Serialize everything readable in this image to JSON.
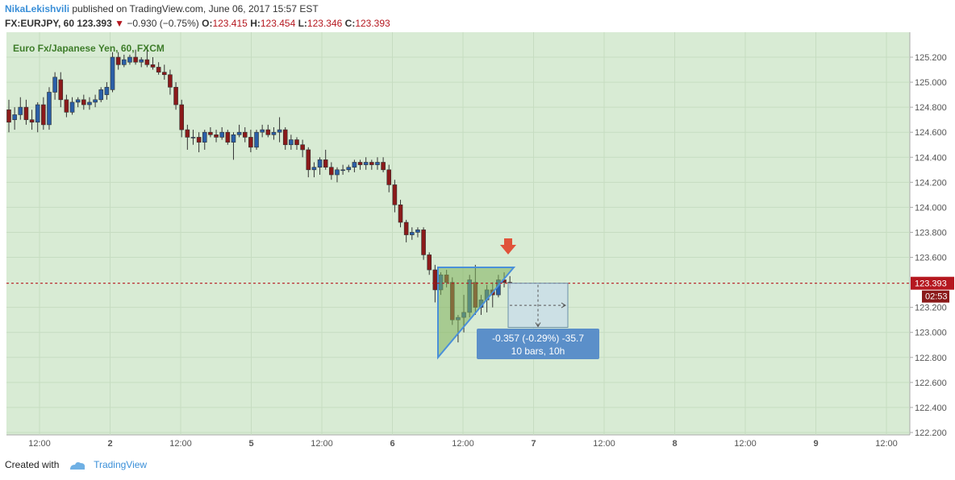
{
  "header": {
    "author": "NikaLekishvili",
    "published": " published on TradingView.com, June 06, 2017 15:57 EST",
    "symbol": "FX:EURJPY, 60",
    "last": "123.393",
    "change": "−0.930 (−0.75%)",
    "o_label": "O:",
    "o_value": "123.415",
    "h_label": "H:",
    "h_value": "123.454",
    "l_label": "L:",
    "l_value": "123.346",
    "c_label": "C:",
    "c_value": "123.393"
  },
  "footer": {
    "created_with": "Created with",
    "brand": "TradingView"
  },
  "colors": {
    "plot_bg": "#d8ebd4",
    "up": "#2a5fa8",
    "down": "#8b1a1a",
    "price_line": "#b5171f",
    "triangle": "#7fb15a",
    "triangle_edge": "#4a90d9",
    "measure_box": "#c9dde8",
    "measure_label_bg": "#5b8fc9",
    "arrow": "#e0533a"
  },
  "chart_data": {
    "type": "candlestick",
    "title": "Euro Fx/Japanese Yen, 60, FXCM",
    "ylim": [
      122.2,
      125.3
    ],
    "y_ticks": [
      125.2,
      125.0,
      124.8,
      124.6,
      124.4,
      124.2,
      124.0,
      123.8,
      123.6,
      123.2,
      123.0,
      122.8,
      122.6,
      122.4,
      122.2
    ],
    "y_tick_labels": [
      "125.200",
      "125.000",
      "124.800",
      "124.600",
      "124.400",
      "124.200",
      "124.000",
      "123.800",
      "123.600",
      "123.200",
      "123.000",
      "122.800",
      "122.600",
      "122.400",
      "122.200"
    ],
    "x_tick_labels": [
      "12:00",
      "2",
      "12:00",
      "5",
      "12:00",
      "6",
      "12:00",
      "7",
      "12:00",
      "8",
      "12:00",
      "9",
      "12:00"
    ],
    "bold_x_ticks": [
      1,
      3,
      5,
      7,
      9,
      11
    ],
    "current_price": 123.393,
    "current_price_label": "123.393",
    "countdown": "02:53",
    "candles": [
      {
        "o": 124.78,
        "h": 124.86,
        "l": 124.6,
        "c": 124.68
      },
      {
        "o": 124.7,
        "h": 124.8,
        "l": 124.62,
        "c": 124.74
      },
      {
        "o": 124.74,
        "h": 124.88,
        "l": 124.7,
        "c": 124.8
      },
      {
        "o": 124.8,
        "h": 124.86,
        "l": 124.66,
        "c": 124.7
      },
      {
        "o": 124.7,
        "h": 124.78,
        "l": 124.62,
        "c": 124.68
      },
      {
        "o": 124.68,
        "h": 124.84,
        "l": 124.6,
        "c": 124.82
      },
      {
        "o": 124.82,
        "h": 124.88,
        "l": 124.62,
        "c": 124.66
      },
      {
        "o": 124.66,
        "h": 124.96,
        "l": 124.62,
        "c": 124.92
      },
      {
        "o": 124.92,
        "h": 125.08,
        "l": 124.86,
        "c": 125.04
      },
      {
        "o": 125.02,
        "h": 125.08,
        "l": 124.8,
        "c": 124.86
      },
      {
        "o": 124.86,
        "h": 124.9,
        "l": 124.72,
        "c": 124.76
      },
      {
        "o": 124.76,
        "h": 124.88,
        "l": 124.74,
        "c": 124.84
      },
      {
        "o": 124.84,
        "h": 124.88,
        "l": 124.8,
        "c": 124.86
      },
      {
        "o": 124.86,
        "h": 124.9,
        "l": 124.78,
        "c": 124.82
      },
      {
        "o": 124.82,
        "h": 124.88,
        "l": 124.78,
        "c": 124.84
      },
      {
        "o": 124.84,
        "h": 124.9,
        "l": 124.8,
        "c": 124.86
      },
      {
        "o": 124.86,
        "h": 124.96,
        "l": 124.84,
        "c": 124.94
      },
      {
        "o": 124.9,
        "h": 125.0,
        "l": 124.86,
        "c": 124.96
      },
      {
        "o": 124.94,
        "h": 125.24,
        "l": 124.92,
        "c": 125.2
      },
      {
        "o": 125.2,
        "h": 125.24,
        "l": 125.1,
        "c": 125.14
      },
      {
        "o": 125.14,
        "h": 125.22,
        "l": 125.12,
        "c": 125.18
      },
      {
        "o": 125.16,
        "h": 125.22,
        "l": 125.14,
        "c": 125.2
      },
      {
        "o": 125.2,
        "h": 125.26,
        "l": 125.14,
        "c": 125.16
      },
      {
        "o": 125.16,
        "h": 125.2,
        "l": 125.12,
        "c": 125.18
      },
      {
        "o": 125.18,
        "h": 125.28,
        "l": 125.12,
        "c": 125.14
      },
      {
        "o": 125.14,
        "h": 125.2,
        "l": 125.1,
        "c": 125.12
      },
      {
        "o": 125.12,
        "h": 125.16,
        "l": 125.06,
        "c": 125.08
      },
      {
        "o": 125.08,
        "h": 125.14,
        "l": 125.02,
        "c": 125.06
      },
      {
        "o": 125.06,
        "h": 125.1,
        "l": 124.9,
        "c": 124.96
      },
      {
        "o": 124.96,
        "h": 125.0,
        "l": 124.78,
        "c": 124.82
      },
      {
        "o": 124.82,
        "h": 124.86,
        "l": 124.56,
        "c": 124.62
      },
      {
        "o": 124.62,
        "h": 124.66,
        "l": 124.46,
        "c": 124.56
      },
      {
        "o": 124.56,
        "h": 124.62,
        "l": 124.5,
        "c": 124.56
      },
      {
        "o": 124.56,
        "h": 124.6,
        "l": 124.44,
        "c": 124.52
      },
      {
        "o": 124.52,
        "h": 124.62,
        "l": 124.46,
        "c": 124.6
      },
      {
        "o": 124.6,
        "h": 124.64,
        "l": 124.56,
        "c": 124.58
      },
      {
        "o": 124.58,
        "h": 124.62,
        "l": 124.52,
        "c": 124.56
      },
      {
        "o": 124.56,
        "h": 124.64,
        "l": 124.54,
        "c": 124.6
      },
      {
        "o": 124.6,
        "h": 124.62,
        "l": 124.5,
        "c": 124.52
      },
      {
        "o": 124.52,
        "h": 124.6,
        "l": 124.38,
        "c": 124.58
      },
      {
        "o": 124.58,
        "h": 124.66,
        "l": 124.56,
        "c": 124.6
      },
      {
        "o": 124.6,
        "h": 124.64,
        "l": 124.52,
        "c": 124.56
      },
      {
        "o": 124.56,
        "h": 124.62,
        "l": 124.44,
        "c": 124.48
      },
      {
        "o": 124.48,
        "h": 124.62,
        "l": 124.46,
        "c": 124.6
      },
      {
        "o": 124.6,
        "h": 124.66,
        "l": 124.56,
        "c": 124.62
      },
      {
        "o": 124.62,
        "h": 124.66,
        "l": 124.56,
        "c": 124.58
      },
      {
        "o": 124.58,
        "h": 124.64,
        "l": 124.54,
        "c": 124.6
      },
      {
        "o": 124.6,
        "h": 124.72,
        "l": 124.52,
        "c": 124.62
      },
      {
        "o": 124.62,
        "h": 124.64,
        "l": 124.46,
        "c": 124.5
      },
      {
        "o": 124.5,
        "h": 124.58,
        "l": 124.46,
        "c": 124.54
      },
      {
        "o": 124.54,
        "h": 124.56,
        "l": 124.46,
        "c": 124.5
      },
      {
        "o": 124.5,
        "h": 124.54,
        "l": 124.4,
        "c": 124.46
      },
      {
        "o": 124.46,
        "h": 124.48,
        "l": 124.24,
        "c": 124.3
      },
      {
        "o": 124.3,
        "h": 124.36,
        "l": 124.24,
        "c": 124.32
      },
      {
        "o": 124.32,
        "h": 124.4,
        "l": 124.26,
        "c": 124.38
      },
      {
        "o": 124.38,
        "h": 124.46,
        "l": 124.3,
        "c": 124.32
      },
      {
        "o": 124.32,
        "h": 124.36,
        "l": 124.22,
        "c": 124.26
      },
      {
        "o": 124.26,
        "h": 124.32,
        "l": 124.2,
        "c": 124.3
      },
      {
        "o": 124.3,
        "h": 124.34,
        "l": 124.26,
        "c": 124.3
      },
      {
        "o": 124.3,
        "h": 124.34,
        "l": 124.28,
        "c": 124.32
      },
      {
        "o": 124.32,
        "h": 124.38,
        "l": 124.28,
        "c": 124.36
      },
      {
        "o": 124.36,
        "h": 124.38,
        "l": 124.3,
        "c": 124.34
      },
      {
        "o": 124.34,
        "h": 124.4,
        "l": 124.3,
        "c": 124.36
      },
      {
        "o": 124.36,
        "h": 124.38,
        "l": 124.3,
        "c": 124.34
      },
      {
        "o": 124.34,
        "h": 124.4,
        "l": 124.3,
        "c": 124.36
      },
      {
        "o": 124.36,
        "h": 124.4,
        "l": 124.28,
        "c": 124.3
      },
      {
        "o": 124.3,
        "h": 124.34,
        "l": 124.12,
        "c": 124.18
      },
      {
        "o": 124.18,
        "h": 124.22,
        "l": 123.96,
        "c": 124.02
      },
      {
        "o": 124.02,
        "h": 124.06,
        "l": 123.84,
        "c": 123.88
      },
      {
        "o": 123.88,
        "h": 123.9,
        "l": 123.72,
        "c": 123.78
      },
      {
        "o": 123.78,
        "h": 123.84,
        "l": 123.74,
        "c": 123.8
      },
      {
        "o": 123.8,
        "h": 123.84,
        "l": 123.76,
        "c": 123.82
      },
      {
        "o": 123.82,
        "h": 123.84,
        "l": 123.58,
        "c": 123.62
      },
      {
        "o": 123.62,
        "h": 123.64,
        "l": 123.46,
        "c": 123.5
      },
      {
        "o": 123.5,
        "h": 123.54,
        "l": 123.24,
        "c": 123.34
      },
      {
        "o": 123.34,
        "h": 123.48,
        "l": 123.3,
        "c": 123.46
      },
      {
        "o": 123.46,
        "h": 123.5,
        "l": 123.36,
        "c": 123.4
      },
      {
        "o": 123.4,
        "h": 123.44,
        "l": 123.06,
        "c": 123.1
      },
      {
        "o": 123.1,
        "h": 123.14,
        "l": 122.92,
        "c": 123.12
      },
      {
        "o": 123.12,
        "h": 123.3,
        "l": 123.0,
        "c": 123.16
      },
      {
        "o": 123.16,
        "h": 123.46,
        "l": 123.12,
        "c": 123.42
      },
      {
        "o": 123.4,
        "h": 123.54,
        "l": 123.14,
        "c": 123.2
      },
      {
        "o": 123.2,
        "h": 123.3,
        "l": 123.14,
        "c": 123.26
      },
      {
        "o": 123.26,
        "h": 123.38,
        "l": 123.16,
        "c": 123.34
      },
      {
        "o": 123.34,
        "h": 123.4,
        "l": 123.2,
        "c": 123.3
      },
      {
        "o": 123.3,
        "h": 123.46,
        "l": 123.28,
        "c": 123.42
      },
      {
        "o": 123.42,
        "h": 123.48,
        "l": 123.36,
        "c": 123.4
      },
      {
        "o": 123.4,
        "h": 123.45,
        "l": 123.35,
        "c": 123.393
      }
    ],
    "annotation": {
      "measure_text_1": "-0.357 (-0.29%) -35.7",
      "measure_text_2": "10 bars, 10h"
    }
  }
}
